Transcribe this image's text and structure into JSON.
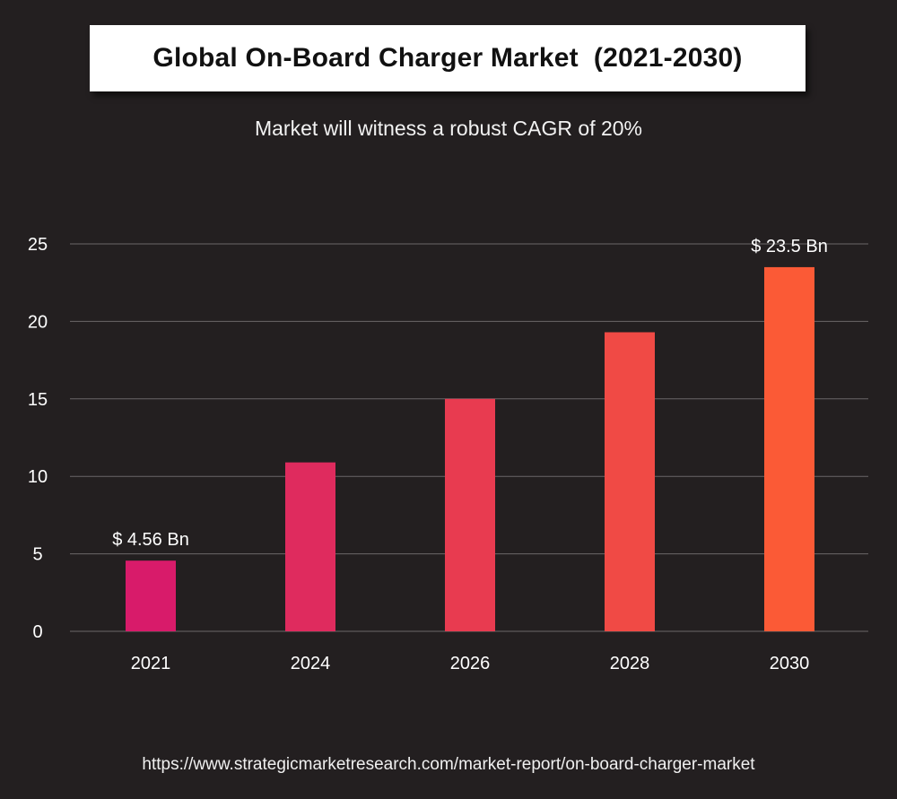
{
  "title": "Global On-Board Charger Market  (2021-2030)",
  "subtitle": "Market will witness a robust CAGR of 20%",
  "source_url": "https://www.strategicmarketresearch.com/market-report/on-board-charger-market",
  "colors": {
    "background": "#231f20",
    "gridline": "#6b6768",
    "title_box": "#ffffff"
  },
  "chart_data": {
    "type": "bar",
    "title": "Global On-Board Charger Market  (2021-2030)",
    "subtitle": "Market will witness a robust CAGR of 20%",
    "xlabel": "",
    "ylabel": "",
    "categories": [
      "2021",
      "2024",
      "2026",
      "2028",
      "2030"
    ],
    "values": [
      4.56,
      10.9,
      15.0,
      19.3,
      23.5
    ],
    "bar_colors": [
      "#d81b6a",
      "#df2b5e",
      "#e83b50",
      "#f04a45",
      "#fb5a36"
    ],
    "data_labels": [
      {
        "index": 0,
        "text": "$ 4.56 Bn"
      },
      {
        "index": 4,
        "text": "$ 23.5 Bn"
      }
    ],
    "ylim": [
      0,
      25
    ],
    "yticks": [
      0,
      5,
      10,
      15,
      20,
      25
    ],
    "grid": true,
    "legend": "none"
  }
}
